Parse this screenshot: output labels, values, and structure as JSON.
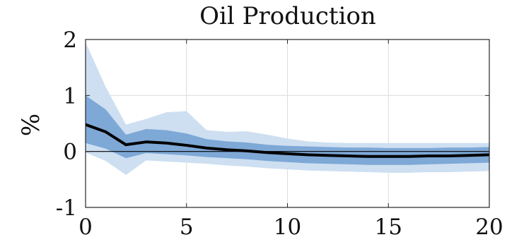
{
  "chart_data": {
    "type": "line",
    "title": "Oil Production",
    "xlabel": "",
    "ylabel": "%",
    "xlim": [
      0,
      20
    ],
    "ylim": [
      -1,
      2
    ],
    "grid": true,
    "x_ticks": [
      0,
      5,
      10,
      15,
      20
    ],
    "y_ticks": [
      -1,
      0,
      1,
      2
    ],
    "x_tick_labels": [
      "0",
      "5",
      "10",
      "15",
      "20"
    ],
    "y_tick_labels": [
      "-1",
      "0",
      "1",
      "2"
    ],
    "x": [
      0,
      1,
      2,
      3,
      4,
      5,
      6,
      7,
      8,
      9,
      10,
      11,
      12,
      13,
      14,
      15,
      16,
      17,
      18,
      19,
      20
    ],
    "series": [
      {
        "role": "median",
        "color": "#000000",
        "values": [
          0.48,
          0.35,
          0.12,
          0.17,
          0.15,
          0.11,
          0.06,
          0.03,
          0.01,
          -0.02,
          -0.04,
          -0.06,
          -0.07,
          -0.08,
          -0.09,
          -0.09,
          -0.09,
          -0.08,
          -0.08,
          -0.07,
          -0.06
        ]
      },
      {
        "role": "inner-band",
        "color": "#7ea8d6",
        "upper": [
          1.0,
          0.75,
          0.3,
          0.4,
          0.38,
          0.32,
          0.22,
          0.18,
          0.16,
          0.12,
          0.1,
          0.09,
          0.08,
          0.07,
          0.07,
          0.06,
          0.06,
          0.06,
          0.07,
          0.07,
          0.08
        ],
        "lower": [
          0.15,
          0.05,
          -0.12,
          -0.03,
          -0.05,
          -0.07,
          -0.1,
          -0.12,
          -0.14,
          -0.17,
          -0.19,
          -0.21,
          -0.22,
          -0.23,
          -0.24,
          -0.24,
          -0.24,
          -0.23,
          -0.22,
          -0.21,
          -0.2
        ]
      },
      {
        "role": "outer-band",
        "color": "#cddff1",
        "upper": [
          1.95,
          1.15,
          0.48,
          0.58,
          0.7,
          0.72,
          0.38,
          0.35,
          0.36,
          0.3,
          0.23,
          0.18,
          0.16,
          0.15,
          0.15,
          0.15,
          0.15,
          0.15,
          0.15,
          0.15,
          0.15
        ],
        "lower": [
          -0.02,
          -0.17,
          -0.42,
          -0.16,
          -0.18,
          -0.2,
          -0.22,
          -0.25,
          -0.27,
          -0.3,
          -0.32,
          -0.34,
          -0.35,
          -0.36,
          -0.37,
          -0.38,
          -0.38,
          -0.37,
          -0.37,
          -0.36,
          -0.35
        ]
      }
    ]
  }
}
